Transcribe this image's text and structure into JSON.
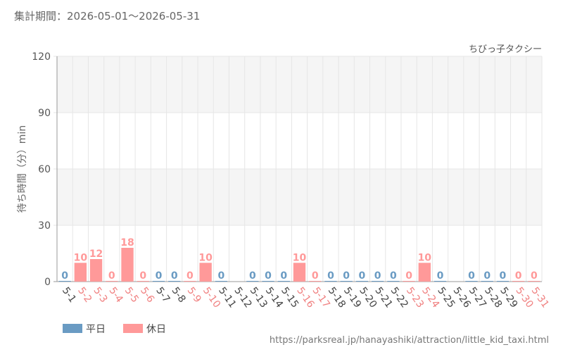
{
  "header": {
    "period_text": "集計期間：2026-05-01～2026-05-31"
  },
  "footer": {
    "source_url": "https://parksreal.jp/hanayashiki/attraction/little_kid_taxi.html"
  },
  "colors": {
    "weekday": "#6a9bc3",
    "holiday": "#ff9999",
    "text": "#555555",
    "grid": "#e6e6e6",
    "band": "#f5f5f5"
  },
  "chart_data": {
    "type": "bar",
    "title": "ちびっ子タクシー",
    "ylabel": "待ち時間（分）min",
    "ylim": [
      0,
      120
    ],
    "yticks": [
      0,
      30,
      60,
      90,
      120
    ],
    "grid": true,
    "legend_position": "bottom-left",
    "legend": [
      {
        "key": "weekday",
        "label": "平日"
      },
      {
        "key": "holiday",
        "label": "休日"
      }
    ],
    "categories": [
      "5-1",
      "5-2",
      "5-3",
      "5-4",
      "5-5",
      "5-6",
      "5-7",
      "5-8",
      "5-9",
      "5-10",
      "5-11",
      "5-12",
      "5-13",
      "5-14",
      "5-15",
      "5-16",
      "5-17",
      "5-18",
      "5-19",
      "5-20",
      "5-21",
      "5-22",
      "5-23",
      "5-24",
      "5-25",
      "5-26",
      "5-27",
      "5-28",
      "5-29",
      "5-30",
      "5-31"
    ],
    "day_type": [
      "weekday",
      "holiday",
      "holiday",
      "holiday",
      "holiday",
      "holiday",
      "weekday",
      "weekday",
      "holiday",
      "holiday",
      "weekday",
      "weekday",
      "weekday",
      "weekday",
      "weekday",
      "holiday",
      "holiday",
      "weekday",
      "weekday",
      "weekday",
      "weekday",
      "weekday",
      "holiday",
      "holiday",
      "weekday",
      "weekday",
      "weekday",
      "weekday",
      "weekday",
      "holiday",
      "holiday"
    ],
    "values": [
      0,
      10,
      12,
      0,
      18,
      0,
      0,
      0,
      0,
      10,
      0,
      null,
      0,
      0,
      0,
      10,
      0,
      0,
      0,
      0,
      0,
      0,
      0,
      10,
      0,
      null,
      0,
      0,
      0,
      0,
      0
    ]
  }
}
